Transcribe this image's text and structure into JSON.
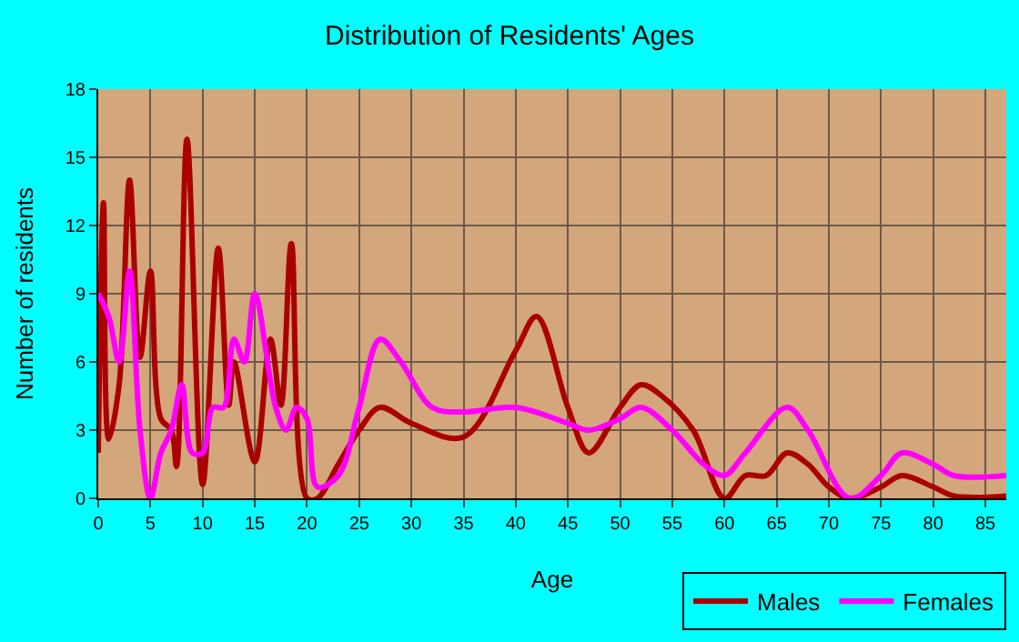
{
  "chart_data": {
    "type": "line",
    "title": "Distribution of Residents' Ages",
    "xlabel": "Age",
    "ylabel": "Number of residents",
    "xlim": [
      0,
      87
    ],
    "xticks": [
      0,
      5,
      10,
      15,
      20,
      25,
      30,
      35,
      40,
      45,
      50,
      55,
      60,
      65,
      70,
      75,
      80,
      85
    ],
    "ylim": [
      0,
      18
    ],
    "yticks": [
      0,
      3,
      6,
      9,
      12,
      15,
      18
    ],
    "grid": true,
    "legend": "bottom right",
    "series": [
      {
        "name": "Males",
        "color": "#aa0000",
        "x": [
          0,
          0.5,
          1,
          2,
          3,
          4,
          5,
          6,
          7,
          7.5,
          8.5,
          10,
          11.5,
          12.5,
          13,
          15,
          16.5,
          17.5,
          18.5,
          20,
          21,
          23,
          25,
          27,
          30,
          35,
          40,
          42,
          45,
          47,
          50,
          52,
          54,
          57,
          60,
          62,
          64,
          66,
          68,
          70,
          72,
          75,
          77,
          80,
          82,
          87
        ],
        "values": [
          2,
          13,
          2.6,
          5,
          14,
          6.2,
          10,
          3.5,
          3,
          1.4,
          15.8,
          0.6,
          11,
          4.1,
          6,
          1.6,
          7,
          4.1,
          11.2,
          0,
          0,
          1.5,
          3,
          4,
          3.3,
          2.7,
          6.5,
          8,
          4,
          2,
          4,
          5,
          4.5,
          3,
          0,
          1,
          1,
          2,
          1.5,
          0.5,
          0,
          0.5,
          1,
          0.5,
          0.1,
          0.1
        ]
      },
      {
        "name": "Females",
        "color": "#ff00ff",
        "x": [
          0,
          1,
          2,
          3,
          4,
          5,
          6,
          7,
          8,
          9,
          10,
          11,
          12,
          13,
          14,
          15,
          17,
          18,
          19,
          20,
          21,
          23,
          25,
          27,
          29,
          32,
          35,
          40,
          45,
          47,
          50,
          52,
          55,
          58,
          60,
          62,
          66,
          68,
          72,
          75,
          77,
          80,
          82,
          87
        ],
        "values": [
          9,
          8,
          6,
          10,
          3,
          0,
          2,
          3,
          5,
          2,
          2,
          4,
          4,
          7,
          6,
          9,
          4,
          3,
          4,
          3.5,
          0.5,
          1,
          4,
          7,
          6,
          4,
          3.8,
          4,
          3.3,
          3,
          3.5,
          4,
          3,
          1.5,
          1,
          2,
          4,
          3,
          0,
          1,
          2,
          1.5,
          1,
          1
        ]
      }
    ]
  }
}
